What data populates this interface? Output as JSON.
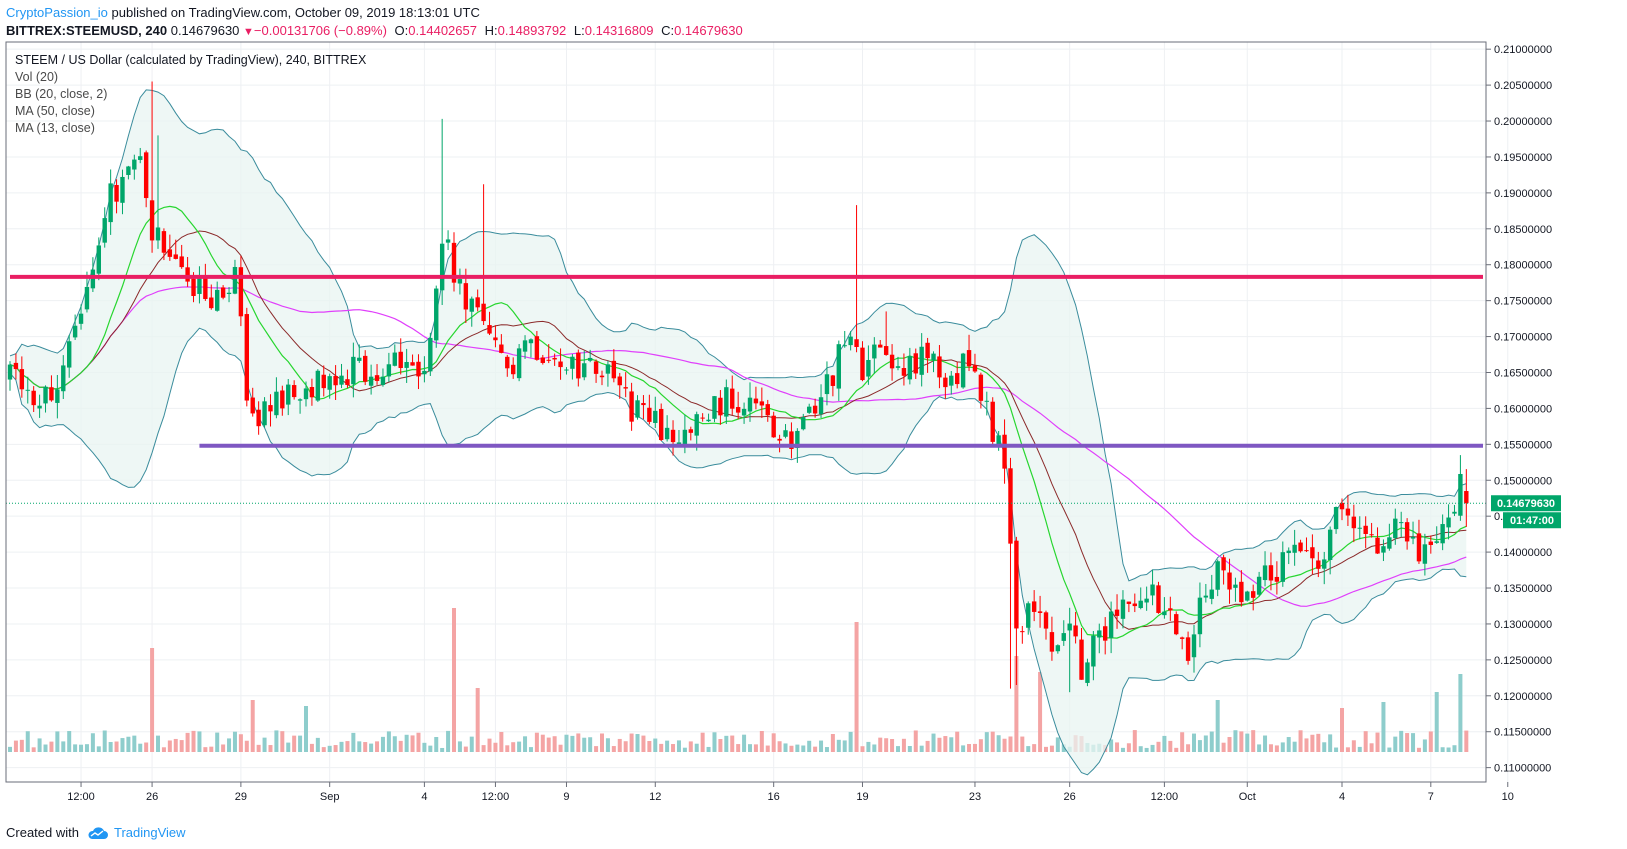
{
  "header": {
    "author": "CryptoPassion_io",
    "published_text": "published on TradingView.com, October 09, 2019 18:13:01 UTC"
  },
  "ohlc_line": {
    "symbol": "BITTREX:STEEMUSD, 240",
    "price": "0.14679630",
    "change": "−0.00131706 (−0.89%)",
    "open_label": "O:",
    "open": "0.14402657",
    "high_label": "H:",
    "high": "0.14893792",
    "low_label": "L:",
    "low": "0.14316809",
    "close_label": "C:",
    "close": "0.14679630"
  },
  "legend": {
    "title": "STEEM / US Dollar (calculated by TradingView), 240, BITTREX",
    "items": [
      "Vol (20)",
      "BB (20, close, 2)",
      "MA (50, close)",
      "MA (13, close)"
    ]
  },
  "footer": {
    "created_with": "Created with",
    "brand": "TradingView"
  },
  "price_badge": {
    "price": "0.14679630",
    "countdown": "01:47:00"
  },
  "colors": {
    "up": "#00a66a",
    "down": "#ff0000",
    "vol_up": "#8ecdcc",
    "vol_down": "#f4a4a4",
    "bb_band": "#3a8c9c",
    "bb_fill": "#e8f4f2",
    "ma50": "#e040fb",
    "ma13_green": "#27d62f",
    "ma13_brown": "#8b2a2a",
    "resistance": "#e91e63",
    "support": "#7e57c2",
    "accent": "#2196f3"
  },
  "chart_data": {
    "type": "candlestick",
    "y_axis": {
      "min": 0.108,
      "max": 0.211,
      "tick_labels": [
        "0.11000000",
        "0.11500000",
        "0.12000000",
        "0.12500000",
        "0.13000000",
        "0.13500000",
        "0.14000000",
        "0.14500000",
        "0.15000000",
        "0.15500000",
        "0.16000000",
        "0.16500000",
        "0.17000000",
        "0.17500000",
        "0.18000000",
        "0.18500000",
        "0.19000000",
        "0.19500000",
        "0.20000000",
        "0.20500000",
        "0.21000000"
      ],
      "tick_values": [
        0.11,
        0.115,
        0.12,
        0.125,
        0.13,
        0.135,
        0.14,
        0.145,
        0.15,
        0.155,
        0.16,
        0.165,
        0.17,
        0.175,
        0.18,
        0.185,
        0.19,
        0.195,
        0.2,
        0.205,
        0.21
      ]
    },
    "x_axis": {
      "bar_count": 246,
      "tick_labels": [
        "12:00",
        "26",
        "29",
        "Sep",
        "4",
        "12:00",
        "9",
        "12",
        "16",
        "19",
        "23",
        "26",
        "12:00",
        "Oct",
        "4",
        "7",
        "10"
      ],
      "tick_bars": [
        12,
        24,
        39,
        54,
        70,
        82,
        94,
        109,
        129,
        144,
        163,
        179,
        195,
        209,
        225,
        240,
        253
      ]
    },
    "horizontal_lines": [
      {
        "role": "resistance",
        "value": 0.1783,
        "from_bar": 0,
        "to_bar": 247
      },
      {
        "role": "support",
        "value": 0.1548,
        "from_bar": 32,
        "to_bar": 247
      }
    ],
    "price_anchors": [
      [
        0,
        0.164
      ],
      [
        8,
        0.161
      ],
      [
        12,
        0.175
      ],
      [
        16,
        0.188
      ],
      [
        20,
        0.193
      ],
      [
        22,
        0.195
      ],
      [
        24,
        0.185
      ],
      [
        27,
        0.183
      ],
      [
        30,
        0.178
      ],
      [
        34,
        0.176
      ],
      [
        38,
        0.179
      ],
      [
        40,
        0.163
      ],
      [
        42,
        0.158
      ],
      [
        46,
        0.162
      ],
      [
        52,
        0.164
      ],
      [
        58,
        0.165
      ],
      [
        65,
        0.166
      ],
      [
        70,
        0.166
      ],
      [
        73,
        0.184
      ],
      [
        76,
        0.177
      ],
      [
        80,
        0.171
      ],
      [
        84,
        0.164
      ],
      [
        88,
        0.169
      ],
      [
        92,
        0.168
      ],
      [
        96,
        0.164
      ],
      [
        100,
        0.166
      ],
      [
        104,
        0.161
      ],
      [
        108,
        0.158
      ],
      [
        113,
        0.156
      ],
      [
        118,
        0.159
      ],
      [
        122,
        0.162
      ],
      [
        126,
        0.16
      ],
      [
        130,
        0.155
      ],
      [
        134,
        0.157
      ],
      [
        138,
        0.163
      ],
      [
        141,
        0.169
      ],
      [
        144,
        0.166
      ],
      [
        147,
        0.167
      ],
      [
        150,
        0.166
      ],
      [
        154,
        0.167
      ],
      [
        158,
        0.165
      ],
      [
        162,
        0.166
      ],
      [
        165,
        0.159
      ],
      [
        168,
        0.153
      ],
      [
        170,
        0.128
      ],
      [
        172,
        0.133
      ],
      [
        174,
        0.133
      ],
      [
        176,
        0.124
      ],
      [
        179,
        0.132
      ],
      [
        181,
        0.124
      ],
      [
        184,
        0.129
      ],
      [
        187,
        0.131
      ],
      [
        190,
        0.134
      ],
      [
        194,
        0.133
      ],
      [
        197,
        0.128
      ],
      [
        199,
        0.126
      ],
      [
        201,
        0.133
      ],
      [
        204,
        0.138
      ],
      [
        208,
        0.135
      ],
      [
        211,
        0.136
      ],
      [
        214,
        0.138
      ],
      [
        218,
        0.142
      ],
      [
        221,
        0.139
      ],
      [
        223,
        0.143
      ],
      [
        225,
        0.147
      ],
      [
        228,
        0.143
      ],
      [
        231,
        0.141
      ],
      [
        234,
        0.143
      ],
      [
        237,
        0.14
      ],
      [
        240,
        0.141
      ],
      [
        243,
        0.145
      ],
      [
        245,
        0.149
      ],
      [
        246,
        0.1468
      ]
    ],
    "volume_spikes": {
      "24": 0.52,
      "41": 0.26,
      "50": 0.23,
      "75": 0.72,
      "79": 0.32,
      "143": 0.65,
      "170": 0.48,
      "174": 0.4,
      "204": 0.26,
      "225": 0.22,
      "232": 0.25,
      "241": 0.3,
      "245": 0.39
    }
  }
}
